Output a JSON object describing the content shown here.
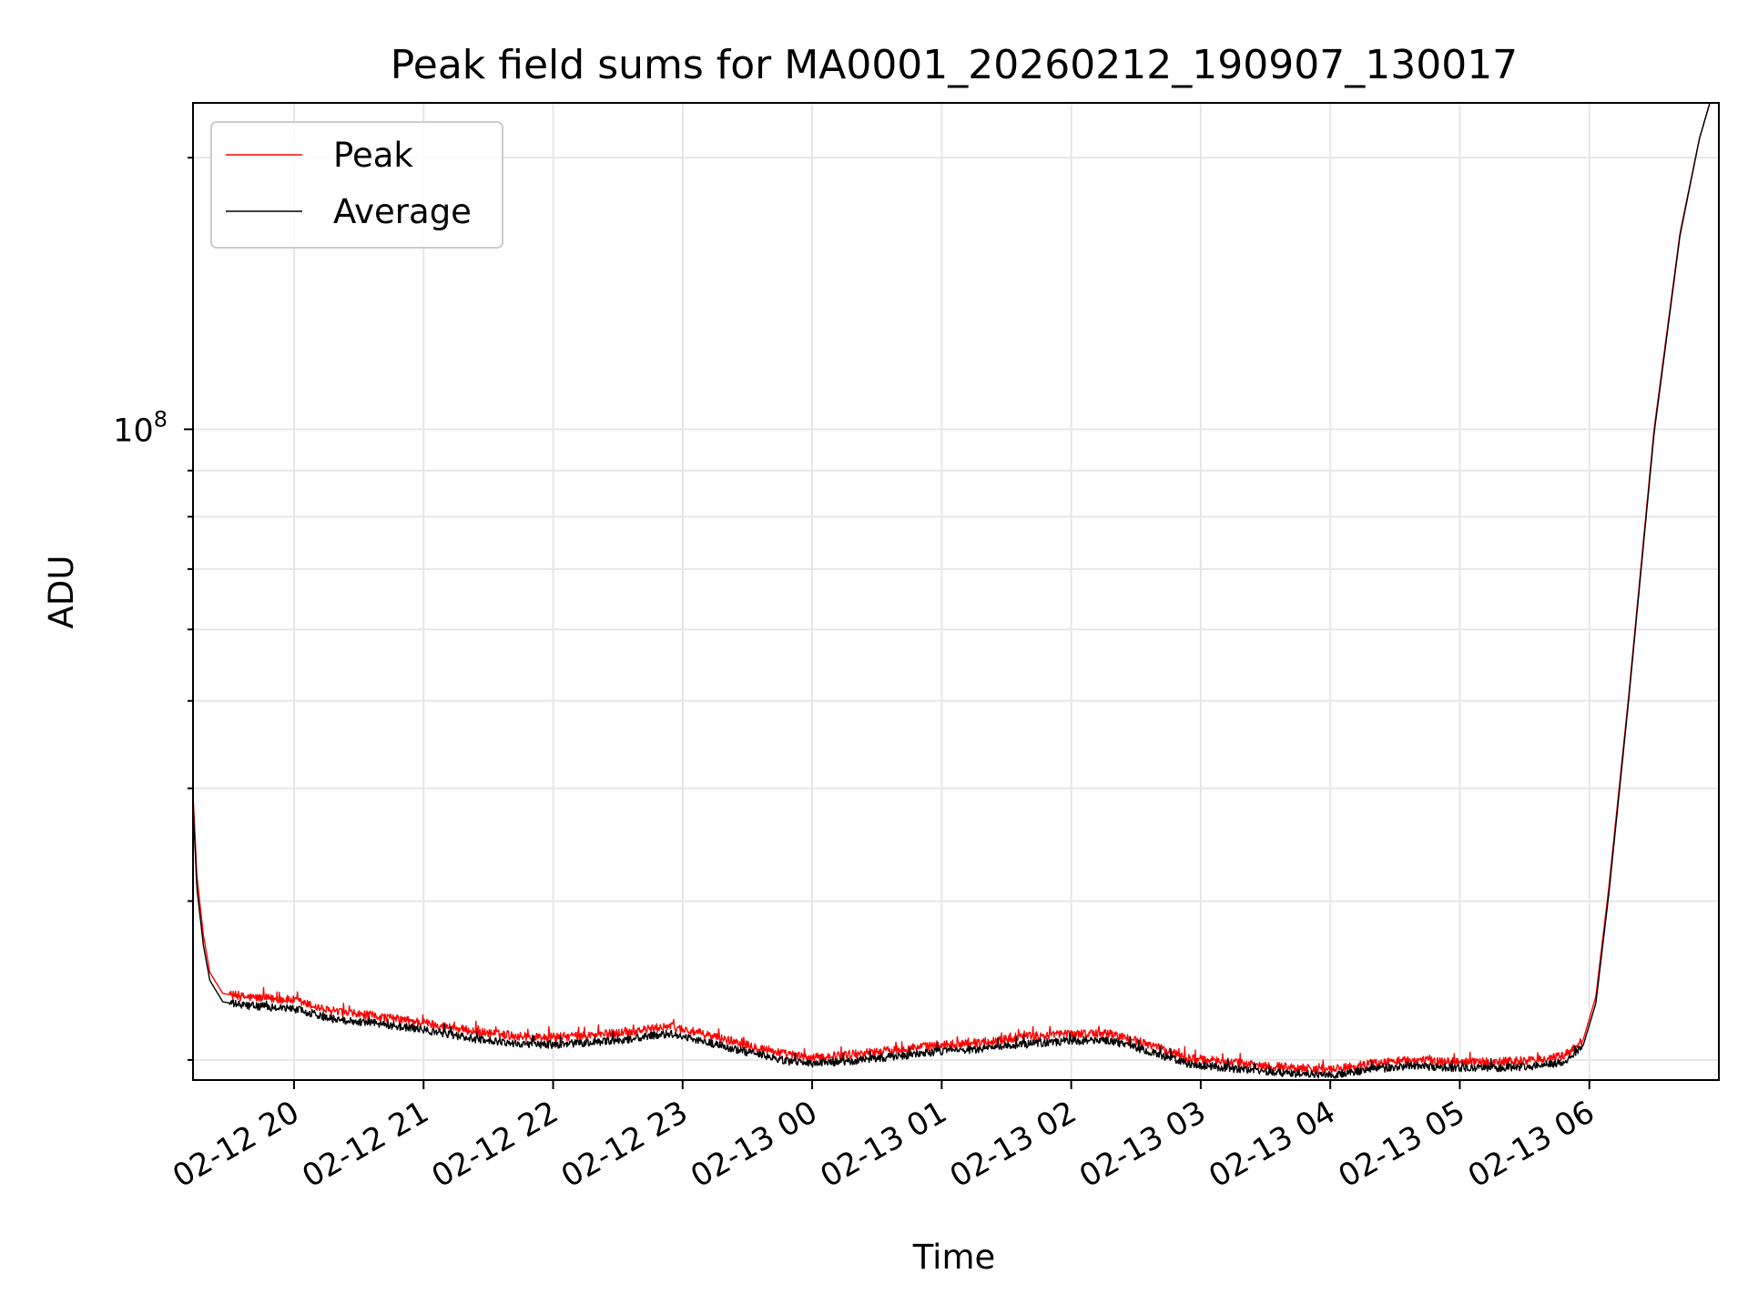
{
  "chart_data": {
    "type": "line",
    "title": "Peak field sums for MA0001_20260212_190907_130017",
    "xlabel": "Time",
    "ylabel": "ADU",
    "y_scale": "log",
    "ylim": [
      19000000,
      230000000
    ],
    "y_major_ticks": [
      {
        "value": 100000000,
        "base": "10",
        "exponent": "8"
      }
    ],
    "y_minor_ticks": [
      20000000,
      30000000,
      40000000,
      50000000,
      60000000,
      70000000,
      80000000,
      90000000,
      200000000
    ],
    "x_unit": "hours since 02-12 19:00",
    "xlim": [
      0.22,
      12.0
    ],
    "x_ticks": [
      {
        "value": 1,
        "label": "02-12 20"
      },
      {
        "value": 2,
        "label": "02-12 21"
      },
      {
        "value": 3,
        "label": "02-12 22"
      },
      {
        "value": 4,
        "label": "02-12 23"
      },
      {
        "value": 5,
        "label": "02-13 00"
      },
      {
        "value": 6,
        "label": "02-13 01"
      },
      {
        "value": 7,
        "label": "02-13 02"
      },
      {
        "value": 8,
        "label": "02-13 03"
      },
      {
        "value": 9,
        "label": "02-13 04"
      },
      {
        "value": 10,
        "label": "02-13 05"
      },
      {
        "value": 11,
        "label": "02-13 06"
      }
    ],
    "grid": true,
    "legend_position": "top-left",
    "series": [
      {
        "name": "Peak",
        "color": "#ff0000",
        "x": [
          0.22,
          0.25,
          0.3,
          0.35,
          0.45,
          0.6,
          0.8,
          1.0,
          1.3,
          1.6,
          2.0,
          2.4,
          2.8,
          3.0,
          3.3,
          3.6,
          3.9,
          4.2,
          4.5,
          4.8,
          5.0,
          5.3,
          5.6,
          6.0,
          6.3,
          6.6,
          7.0,
          7.3,
          7.6,
          7.9,
          8.2,
          8.5,
          8.8,
          9.0,
          9.3,
          9.6,
          10.0,
          10.3,
          10.6,
          10.8,
          10.95,
          11.05,
          11.15,
          11.3,
          11.5,
          11.7,
          11.85,
          11.93
        ],
        "y": [
          39500000,
          32000000,
          27500000,
          25000000,
          23700000,
          23500000,
          23400000,
          23300000,
          22600000,
          22400000,
          22000000,
          21500000,
          21200000,
          21200000,
          21300000,
          21500000,
          21800000,
          21300000,
          20800000,
          20300000,
          20100000,
          20300000,
          20500000,
          20800000,
          20900000,
          21200000,
          21400000,
          21400000,
          20800000,
          20100000,
          19900000,
          19700000,
          19600000,
          19500000,
          19800000,
          20000000,
          19900000,
          19900000,
          20000000,
          20200000,
          21000000,
          23500000,
          31000000,
          50000000,
          100000000,
          165000000,
          210000000,
          230000000
        ]
      },
      {
        "name": "Average",
        "color": "#000000",
        "x": [
          0.22,
          0.25,
          0.3,
          0.35,
          0.45,
          0.6,
          0.8,
          1.0,
          1.3,
          1.6,
          2.0,
          2.4,
          2.8,
          3.0,
          3.3,
          3.6,
          3.9,
          4.2,
          4.5,
          4.8,
          5.0,
          5.3,
          5.6,
          6.0,
          6.3,
          6.6,
          7.0,
          7.3,
          7.6,
          7.9,
          8.2,
          8.5,
          8.8,
          9.0,
          9.3,
          9.6,
          10.0,
          10.3,
          10.6,
          10.8,
          10.95,
          11.05,
          11.15,
          11.3,
          11.5,
          11.7,
          11.85,
          11.93
        ],
        "y": [
          38500000,
          31000000,
          26800000,
          24500000,
          23200000,
          23000000,
          22900000,
          22800000,
          22200000,
          22000000,
          21600000,
          21100000,
          20800000,
          20800000,
          20900000,
          21100000,
          21400000,
          20900000,
          20400000,
          19950000,
          19800000,
          19950000,
          20150000,
          20450000,
          20550000,
          20800000,
          21000000,
          21000000,
          20450000,
          19800000,
          19600000,
          19400000,
          19300000,
          19250000,
          19500000,
          19700000,
          19600000,
          19600000,
          19700000,
          19900000,
          20700000,
          23100000,
          30500000,
          49500000,
          99000000,
          164000000,
          210000000,
          230000000
        ]
      }
    ]
  }
}
